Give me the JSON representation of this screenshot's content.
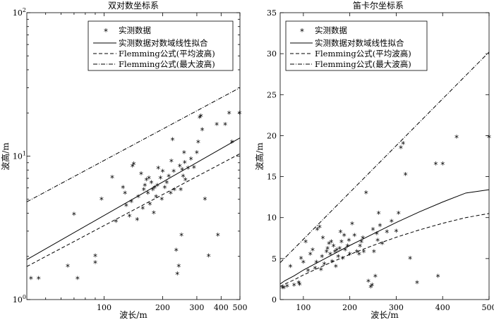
{
  "chart_data": [
    {
      "type": "scatter",
      "title": "双对数坐标系",
      "xlabel": "波长/m",
      "ylabel": "波高/m",
      "xscale": "log",
      "yscale": "log",
      "xlim": [
        40,
        500
      ],
      "ylim": [
        1,
        100
      ],
      "xticks": [
        100,
        200,
        300,
        400,
        500
      ],
      "xtick_labels": [
        "100",
        "200",
        "300",
        "400",
        "500"
      ],
      "yticks": [
        1,
        10,
        100
      ],
      "ytick_labels": [
        "10",
        "10",
        "10"
      ],
      "ytick_exponents": [
        "0",
        "1",
        "2"
      ],
      "legend": [
        {
          "label": "实测数据",
          "style": "marker"
        },
        {
          "label": "实测数据对数域线性拟合",
          "style": "solid"
        },
        {
          "label": "Flemming公式(平均波高)",
          "style": "dashed"
        },
        {
          "label": "Flemming公式(最大波高)",
          "style": "dashdot"
        }
      ],
      "legend_location": "top",
      "series": [
        {
          "name": "实测数据",
          "kind": "points",
          "x": [
            42,
            46,
            65,
            70,
            73,
            90,
            90,
            97,
            110,
            115,
            125,
            128,
            130,
            135,
            138,
            140,
            142,
            148,
            150,
            155,
            158,
            160,
            162,
            165,
            168,
            170,
            172,
            175,
            178,
            180,
            182,
            185,
            188,
            190,
            195,
            198,
            200,
            205,
            210,
            215,
            220,
            222,
            225,
            228,
            230,
            235,
            238,
            242,
            245,
            248,
            250,
            252,
            255,
            258,
            260,
            262,
            270,
            280,
            290,
            300,
            305,
            310,
            315,
            320,
            330,
            345,
            380,
            385,
            420,
            440,
            498,
            455
          ],
          "y": [
            1.4,
            1.4,
            1.7,
            3.9,
            1.4,
            2.0,
            1.8,
            5.0,
            7.1,
            3.5,
            6.0,
            5.5,
            4.5,
            3.8,
            4.8,
            8.5,
            8.8,
            3.6,
            5.2,
            7.5,
            4.3,
            5.8,
            6.2,
            6.8,
            5.5,
            7.0,
            4.6,
            6.5,
            5.8,
            4.0,
            6.0,
            5.2,
            6.2,
            8.2,
            7.0,
            5.0,
            7.8,
            6.0,
            6.5,
            7.2,
            5.5,
            9.2,
            13.0,
            7.8,
            5.8,
            2.2,
            1.5,
            1.7,
            8.5,
            5.8,
            2.8,
            8.0,
            7.2,
            10.5,
            9.0,
            6.8,
            8.2,
            9.5,
            8.3,
            10.5,
            12.5,
            18.5,
            19.0,
            15.2,
            5.0,
            2.0,
            16.5,
            2.8,
            16.5,
            19.8,
            19.8,
            12.5
          ]
        },
        {
          "name": "实测数据对数域线性拟合",
          "kind": "line",
          "x": [
            40,
            500
          ],
          "y": [
            1.9,
            13.4
          ]
        },
        {
          "name": "Flemming公式(平均波高)",
          "kind": "line",
          "x": [
            40,
            500
          ],
          "y": [
            1.7,
            10.4
          ]
        },
        {
          "name": "Flemming公式(最大波高)",
          "kind": "line",
          "x": [
            40,
            500
          ],
          "y": [
            4.8,
            30.0
          ]
        }
      ]
    },
    {
      "type": "scatter",
      "title": "笛卡尔坐标系",
      "xlabel": "波长/m",
      "ylabel": "波高/m",
      "xscale": "linear",
      "yscale": "linear",
      "xlim": [
        50,
        500
      ],
      "ylim": [
        0,
        35
      ],
      "xticks": [
        100,
        200,
        300,
        400,
        500
      ],
      "xtick_labels": [
        "100",
        "200",
        "300",
        "400",
        "500"
      ],
      "yticks": [
        0,
        5,
        10,
        15,
        20,
        25,
        30,
        35
      ],
      "ytick_labels": [
        "0",
        "5",
        "10",
        "15",
        "20",
        "25",
        "30",
        "35"
      ],
      "legend": [
        {
          "label": "实测数据",
          "style": "marker"
        },
        {
          "label": "实测数据对数域线性拟合",
          "style": "solid"
        },
        {
          "label": "Flemming公式(平均波高)",
          "style": "dashed"
        },
        {
          "label": "Flemming公式(最大波高)",
          "style": "dashdot"
        }
      ],
      "legend_location": "top",
      "series": [
        {
          "name": "实测数据",
          "kind": "points",
          "x": [
            55,
            58,
            65,
            72,
            80,
            90,
            92,
            95,
            100,
            105,
            110,
            115,
            120,
            125,
            128,
            130,
            135,
            138,
            140,
            142,
            145,
            150,
            152,
            155,
            158,
            160,
            162,
            165,
            168,
            170,
            172,
            175,
            178,
            180,
            182,
            185,
            188,
            190,
            195,
            198,
            200,
            205,
            210,
            215,
            220,
            222,
            225,
            228,
            230,
            235,
            240,
            245,
            248,
            250,
            252,
            255,
            258,
            260,
            262,
            265,
            270,
            280,
            290,
            300,
            305,
            310,
            315,
            320,
            330,
            345,
            385,
            390,
            400,
            430,
            500
          ],
          "y": [
            1.4,
            1.4,
            1.6,
            4.0,
            1.7,
            2.0,
            1.8,
            5.0,
            4.5,
            7.0,
            3.5,
            5.5,
            6.0,
            3.8,
            4.5,
            8.5,
            8.8,
            3.6,
            5.2,
            7.5,
            4.3,
            5.8,
            6.2,
            6.8,
            5.5,
            7.0,
            4.6,
            6.5,
            5.8,
            4.0,
            6.0,
            5.2,
            6.2,
            8.2,
            7.0,
            5.0,
            7.8,
            6.0,
            6.5,
            7.2,
            5.5,
            9.2,
            7.8,
            5.8,
            5.5,
            6.5,
            7.0,
            7.5,
            5.8,
            13.0,
            2.2,
            1.5,
            1.7,
            8.5,
            5.8,
            2.8,
            8.0,
            7.2,
            10.5,
            9.0,
            6.8,
            8.2,
            9.5,
            8.3,
            10.5,
            18.5,
            19.0,
            15.2,
            5.0,
            2.0,
            16.5,
            2.8,
            16.5,
            19.8,
            19.8
          ]
        },
        {
          "name": "实测数据对数域线性拟合",
          "kind": "curve",
          "x": [
            50,
            60,
            80,
            100,
            150,
            200,
            250,
            300,
            350,
            400,
            450,
            500
          ],
          "y": [
            1.9,
            2.3,
            2.9,
            3.6,
            5.1,
            6.6,
            8.0,
            9.4,
            10.7,
            11.9,
            13.0,
            13.4
          ]
        },
        {
          "name": "Flemming公式(平均波高)",
          "kind": "curve",
          "x": [
            50,
            60,
            80,
            100,
            150,
            200,
            250,
            300,
            350,
            400,
            450,
            500
          ],
          "y": [
            1.6,
            1.9,
            2.4,
            3.0,
            4.3,
            5.5,
            6.6,
            7.6,
            8.5,
            9.3,
            10.0,
            10.5
          ]
        },
        {
          "name": "Flemming公式(最大波高)",
          "kind": "line",
          "x": [
            50,
            500
          ],
          "y": [
            4.5,
            30.2
          ]
        }
      ]
    }
  ]
}
